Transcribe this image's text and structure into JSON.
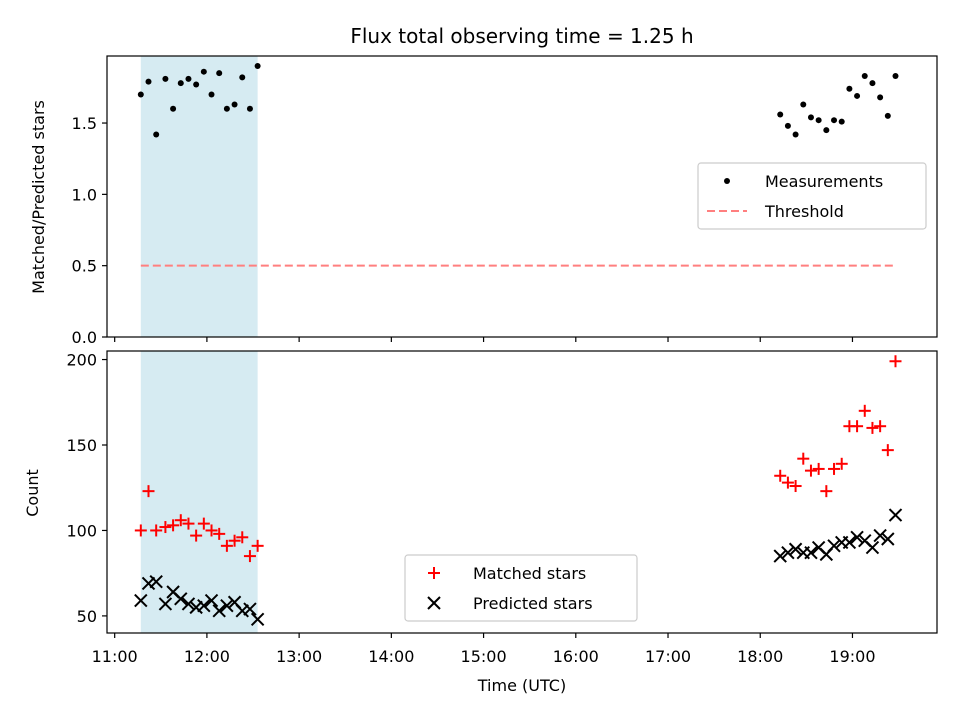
{
  "chart_data": [
    {
      "type": "scatter",
      "title": "Flux total observing time = 1.25 h",
      "xlabel": "",
      "ylabel": "Matched/Predicted stars",
      "ylim": [
        0,
        1.97
      ],
      "yticks": [
        "0.0",
        "0.5",
        "1.0",
        "1.5"
      ],
      "ytick_values": [
        0,
        0.5,
        1.0,
        1.5
      ],
      "highlight_span": {
        "from": "11:17",
        "to": "12:33",
        "color": "#add8e6"
      },
      "series": [
        {
          "name": "Measurements",
          "marker": "dot",
          "color": "#000000",
          "points": [
            [
              "11:17",
              1.7
            ],
            [
              "11:22",
              1.79
            ],
            [
              "11:27",
              1.42
            ],
            [
              "11:33",
              1.81
            ],
            [
              "11:38",
              1.6
            ],
            [
              "11:43",
              1.78
            ],
            [
              "11:48",
              1.81
            ],
            [
              "11:53",
              1.77
            ],
            [
              "11:58",
              1.86
            ],
            [
              "12:03",
              1.7
            ],
            [
              "12:08",
              1.85
            ],
            [
              "12:13",
              1.6
            ],
            [
              "12:18",
              1.63
            ],
            [
              "12:23",
              1.82
            ],
            [
              "12:28",
              1.6
            ],
            [
              "12:33",
              1.9
            ],
            [
              "18:13",
              1.56
            ],
            [
              "18:18",
              1.48
            ],
            [
              "18:23",
              1.42
            ],
            [
              "18:28",
              1.63
            ],
            [
              "18:33",
              1.54
            ],
            [
              "18:38",
              1.52
            ],
            [
              "18:43",
              1.45
            ],
            [
              "18:48",
              1.52
            ],
            [
              "18:53",
              1.51
            ],
            [
              "18:58",
              1.74
            ],
            [
              "19:03",
              1.69
            ],
            [
              "19:08",
              1.83
            ],
            [
              "19:13",
              1.78
            ],
            [
              "19:18",
              1.68
            ],
            [
              "19:23",
              1.55
            ],
            [
              "19:28",
              1.83
            ]
          ]
        },
        {
          "name": "Threshold",
          "marker": "dashed-line",
          "color": "#ff7f7f",
          "points": [
            [
              "11:17",
              0.5
            ],
            [
              "19:28",
              0.5
            ]
          ]
        }
      ],
      "legend_position": "center-right"
    },
    {
      "type": "scatter",
      "title": "",
      "xlabel": "Time (UTC)",
      "ylabel": "Count",
      "ylim": [
        40,
        205
      ],
      "yticks": [
        "50",
        "100",
        "150",
        "200"
      ],
      "ytick_values": [
        50,
        100,
        150,
        200
      ],
      "xlim": [
        "10:55",
        "19:55"
      ],
      "xticks": [
        "11:00",
        "12:00",
        "13:00",
        "14:00",
        "15:00",
        "16:00",
        "17:00",
        "18:00",
        "19:00"
      ],
      "highlight_span": {
        "from": "11:17",
        "to": "12:33",
        "color": "#add8e6"
      },
      "series": [
        {
          "name": "Matched stars",
          "marker": "plus",
          "color": "#ff0000",
          "points": [
            [
              "11:17",
              100
            ],
            [
              "11:22",
              123
            ],
            [
              "11:27",
              100
            ],
            [
              "11:33",
              102
            ],
            [
              "11:38",
              103
            ],
            [
              "11:43",
              106
            ],
            [
              "11:48",
              104
            ],
            [
              "11:53",
              97
            ],
            [
              "11:58",
              104
            ],
            [
              "12:03",
              100
            ],
            [
              "12:08",
              98
            ],
            [
              "12:13",
              91
            ],
            [
              "12:18",
              94
            ],
            [
              "12:23",
              96
            ],
            [
              "12:28",
              85
            ],
            [
              "12:33",
              91
            ],
            [
              "18:13",
              132
            ],
            [
              "18:18",
              128
            ],
            [
              "18:23",
              126
            ],
            [
              "18:28",
              142
            ],
            [
              "18:33",
              135
            ],
            [
              "18:38",
              136
            ],
            [
              "18:43",
              123
            ],
            [
              "18:48",
              136
            ],
            [
              "18:53",
              139
            ],
            [
              "18:58",
              161
            ],
            [
              "19:03",
              161
            ],
            [
              "19:08",
              170
            ],
            [
              "19:13",
              160
            ],
            [
              "19:18",
              161
            ],
            [
              "19:23",
              147
            ],
            [
              "19:28",
              199
            ]
          ]
        },
        {
          "name": "Predicted stars",
          "marker": "x",
          "color": "#000000",
          "points": [
            [
              "11:17",
              59
            ],
            [
              "11:22",
              69
            ],
            [
              "11:27",
              70
            ],
            [
              "11:33",
              57
            ],
            [
              "11:38",
              64
            ],
            [
              "11:43",
              60
            ],
            [
              "11:48",
              57
            ],
            [
              "11:53",
              55
            ],
            [
              "11:58",
              56
            ],
            [
              "12:03",
              59
            ],
            [
              "12:08",
              53
            ],
            [
              "12:13",
              56
            ],
            [
              "12:18",
              58
            ],
            [
              "12:23",
              53
            ],
            [
              "12:28",
              54
            ],
            [
              "12:33",
              48
            ],
            [
              "18:13",
              85
            ],
            [
              "18:18",
              87
            ],
            [
              "18:23",
              89
            ],
            [
              "18:28",
              87
            ],
            [
              "18:33",
              87
            ],
            [
              "18:38",
              90
            ],
            [
              "18:43",
              86
            ],
            [
              "18:48",
              91
            ],
            [
              "18:53",
              93
            ],
            [
              "18:58",
              93
            ],
            [
              "19:03",
              96
            ],
            [
              "19:08",
              94
            ],
            [
              "19:13",
              90
            ],
            [
              "19:18",
              97
            ],
            [
              "19:23",
              95
            ],
            [
              "19:28",
              109
            ]
          ]
        }
      ],
      "legend_position": "lower-center"
    }
  ]
}
